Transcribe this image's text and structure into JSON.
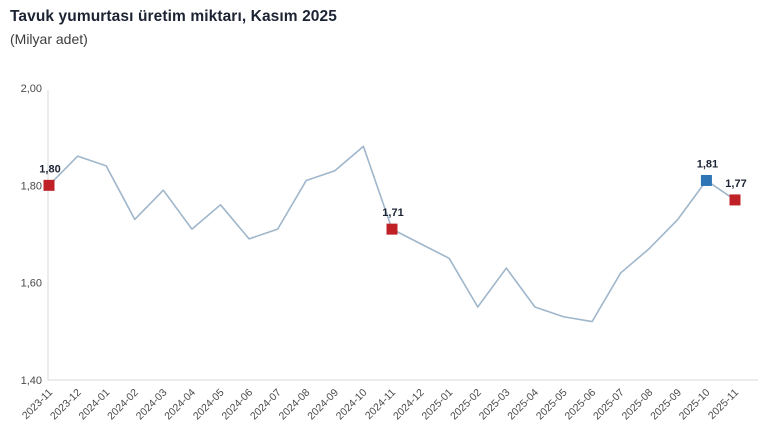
{
  "title": "Tavuk yumurtası üretim miktarı, Kasım 2025",
  "subtitle": "(Milyar adet)",
  "colors": {
    "line": "#9fb6cb",
    "axis": "#d9d9d9",
    "marker_red": "#bf2127",
    "marker_blue": "#2e75b6",
    "tick_text": "#4a4a4a",
    "label_text": "#1c2333",
    "background": "#ffffff"
  },
  "chart_data": {
    "type": "line",
    "title": "Tavuk yumurtası üretim miktarı, Kasım 2025",
    "subtitle": "(Milyar adet)",
    "xlabel": "",
    "ylabel": "",
    "grid": false,
    "legend": false,
    "ylim": [
      1.4,
      2.0
    ],
    "yticks": [
      1.4,
      1.6,
      1.8,
      2.0
    ],
    "ytick_labels": [
      "1,40",
      "1,60",
      "1,80",
      "2,00"
    ],
    "categories": [
      "2023-11",
      "2023-12",
      "2024-01",
      "2024-02",
      "2024-03",
      "2024-04",
      "2024-05",
      "2024-06",
      "2024-07",
      "2024-08",
      "2024-09",
      "2024-10",
      "2024-11",
      "2024-12",
      "2025-01",
      "2025-02",
      "2025-03",
      "2025-04",
      "2025-05",
      "2025-06",
      "2025-07",
      "2025-08",
      "2025-09",
      "2025-10",
      "2025-11"
    ],
    "values": [
      1.8,
      1.86,
      1.84,
      1.73,
      1.79,
      1.71,
      1.76,
      1.69,
      1.71,
      1.81,
      1.83,
      1.88,
      1.71,
      1.68,
      1.65,
      1.55,
      1.63,
      1.55,
      1.53,
      1.52,
      1.62,
      1.67,
      1.73,
      1.81,
      1.77
    ],
    "highlighted_points": [
      {
        "category": "2023-11",
        "value": 1.8,
        "label": "1,80",
        "color": "#bf2127"
      },
      {
        "category": "2024-11",
        "value": 1.71,
        "label": "1,71",
        "color": "#bf2127"
      },
      {
        "category": "2025-10",
        "value": 1.81,
        "label": "1,81",
        "color": "#2e75b6"
      },
      {
        "category": "2025-11",
        "value": 1.77,
        "label": "1,77",
        "color": "#bf2127"
      }
    ]
  }
}
